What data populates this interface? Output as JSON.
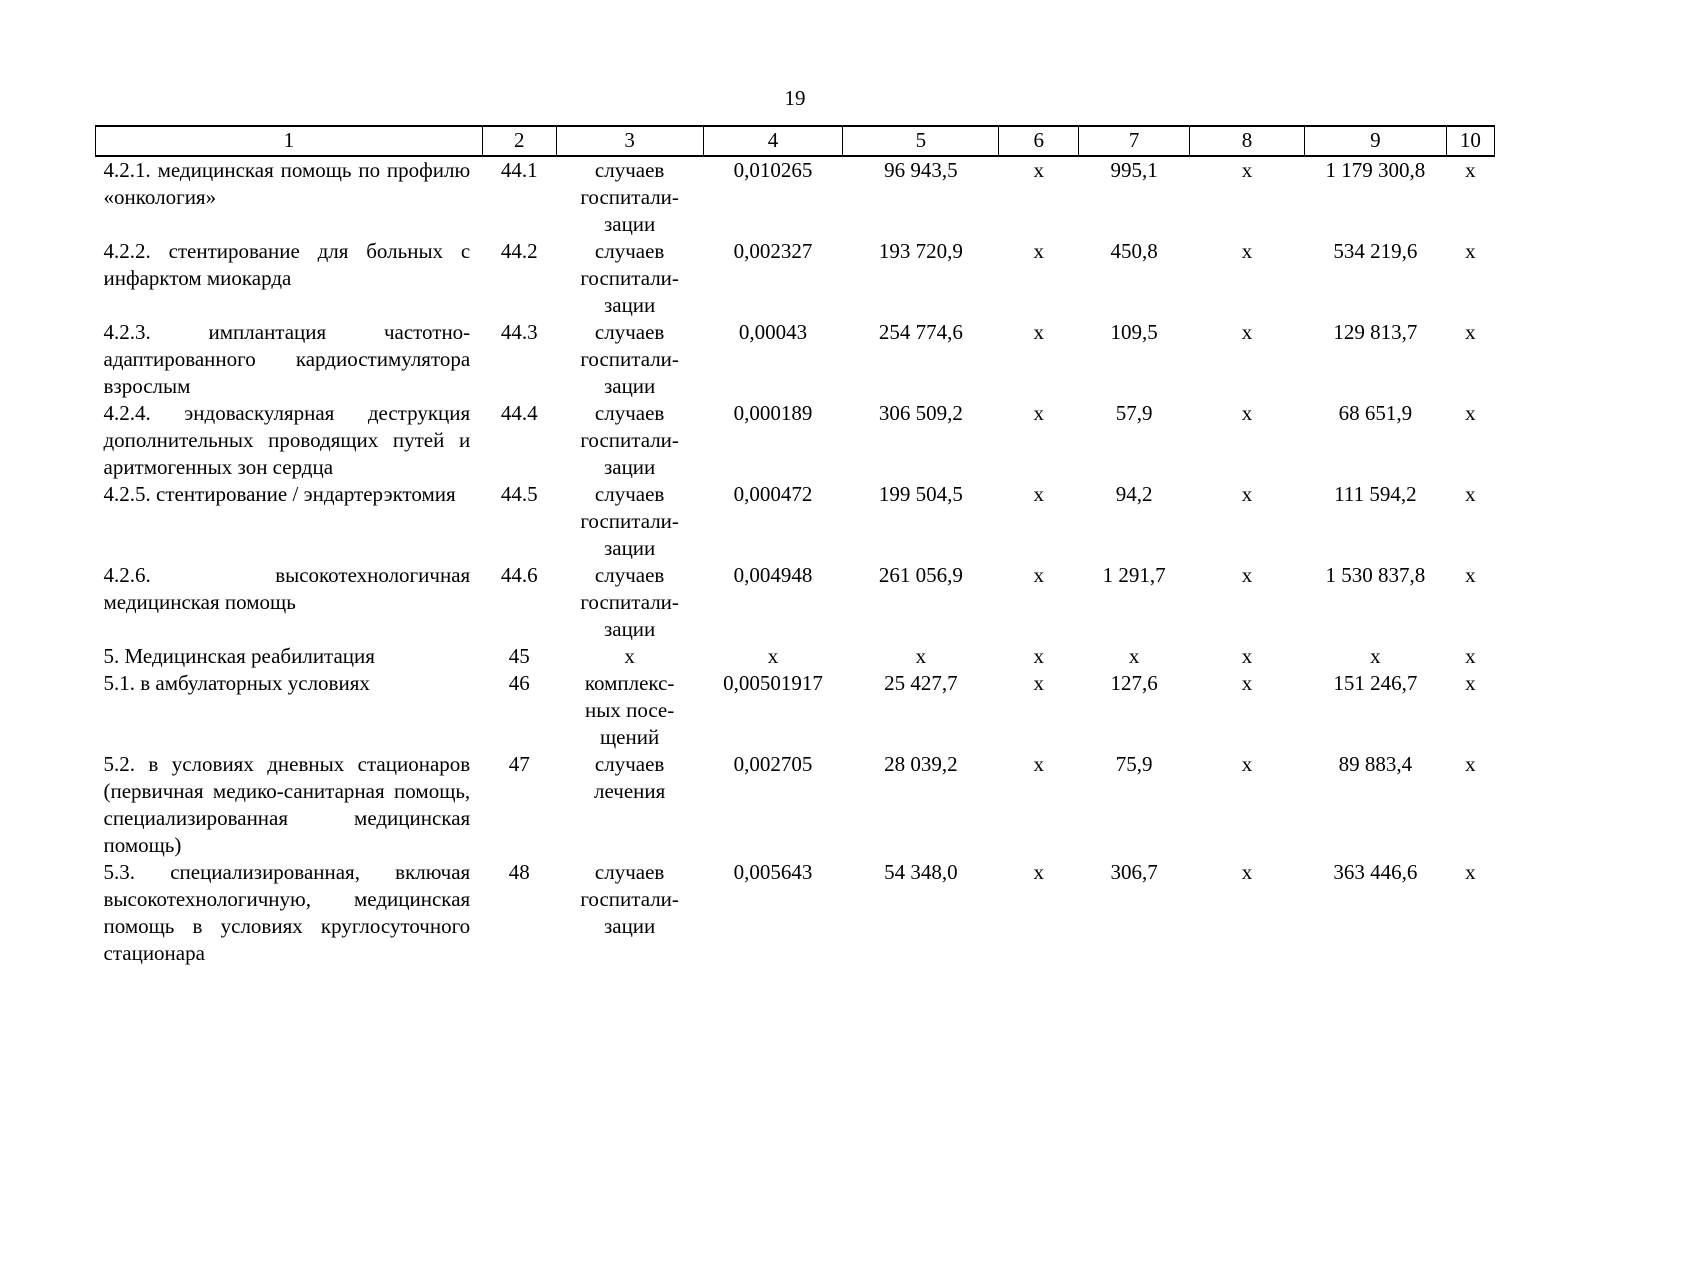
{
  "page": {
    "number": "19"
  },
  "table": {
    "column_numbers": [
      "1",
      "2",
      "3",
      "4",
      "5",
      "6",
      "7",
      "8",
      "9",
      "10"
    ],
    "rows": [
      {
        "cells": [
          "4.2.1. медицинская помощь по профилю «онкология»",
          "44.1",
          "случаев\nгоспитали-\nзации",
          "0,010265",
          "96 943,5",
          "х",
          "995,1",
          "х",
          "1 179 300,8",
          "х"
        ]
      },
      {
        "cells": [
          "4.2.2. стентирование для больных с инфарктом миокарда",
          "44.2",
          "случаев\nгоспитали-\nзации",
          "0,002327",
          "193 720,9",
          "х",
          "450,8",
          "х",
          "534 219,6",
          "х"
        ]
      },
      {
        "cells": [
          "4.2.3. имплантация частотно-адаптированного кардиостимулятора взрослым",
          "44.3",
          "случаев\nгоспитали-\nзации",
          "0,00043",
          "254 774,6",
          "х",
          "109,5",
          "х",
          "129 813,7",
          "х"
        ]
      },
      {
        "cells": [
          "4.2.4. эндоваскулярная деструкция дополнительных проводящих путей и аритмогенных зон сердца",
          "44.4",
          "случаев\nгоспитали-\nзации",
          "0,000189",
          "306 509,2",
          "х",
          "57,9",
          "х",
          "68 651,9",
          "х"
        ]
      },
      {
        "cells": [
          "4.2.5. стентирование / эндартерэктомия",
          "44.5",
          "случаев\nгоспитали-\nзации",
          "0,000472",
          "199 504,5",
          "х",
          "94,2",
          "х",
          "111 594,2",
          "х"
        ]
      },
      {
        "cells": [
          "4.2.6. высокотехнологичная медицинская помощь",
          "44.6",
          "случаев\nгоспитали-\nзации",
          "0,004948",
          "261 056,9",
          "х",
          "1 291,7",
          "х",
          "1 530 837,8",
          "х"
        ]
      },
      {
        "cells": [
          "5.  Медицинская реабилитация",
          "45",
          "х",
          "х",
          "х",
          "х",
          "х",
          "х",
          "х",
          "х"
        ]
      },
      {
        "cells": [
          "5.1.  в амбулаторных условиях",
          "46",
          "комплекс-\nных посе-\nщений",
          "0,00501917",
          "25 427,7",
          "х",
          "127,6",
          "х",
          "151 246,7",
          "х"
        ]
      },
      {
        "cells": [
          "5.2.  в условиях дневных стационаров (первичная медико-санитарная помощь, специализированная медицинская помощь)",
          "47",
          "случаев\nлечения",
          "0,002705",
          "28 039,2",
          "х",
          "75,9",
          "х",
          "89 883,4",
          "х"
        ]
      },
      {
        "cells": [
          "5.3.  специализированная, включая высокотехнологичную, медицинская помощь в условиях круглосуточного стационара",
          "48",
          "случаев\nгоспитали-\nзации",
          "0,005643",
          "54 348,0",
          "х",
          "306,7",
          "х",
          "363 446,6",
          "х"
        ]
      }
    ]
  }
}
